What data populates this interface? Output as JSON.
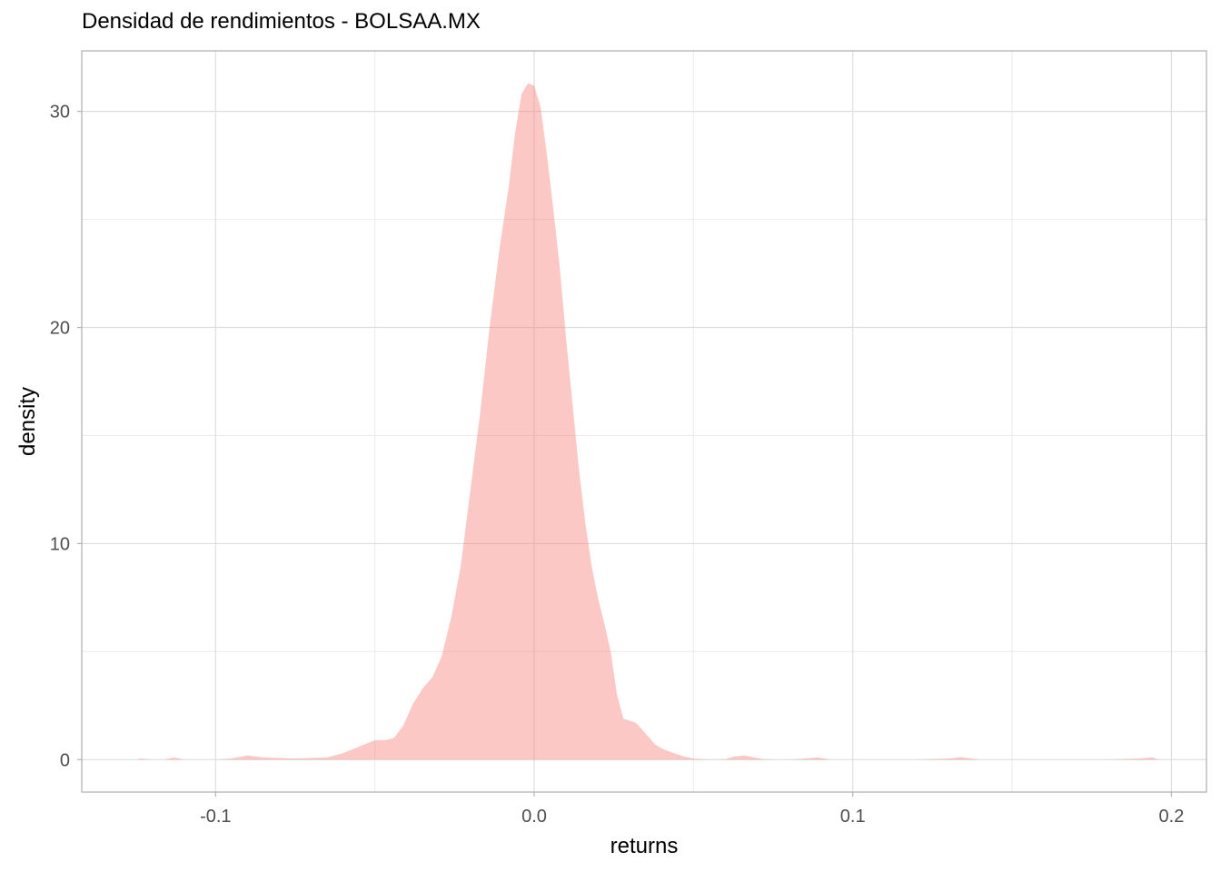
{
  "chart_data": {
    "type": "area",
    "title": "Densidad de rendimientos - BOLSAA.MX",
    "xlabel": "returns",
    "ylabel": "density",
    "xlim": [
      -0.142,
      0.211
    ],
    "ylim": [
      -1.5,
      32.8
    ],
    "x_ticks": [
      -0.1,
      0.0,
      0.1,
      0.2
    ],
    "x_tick_labels": [
      "-0.1",
      "0.0",
      "0.1",
      "0.2"
    ],
    "y_ticks": [
      0,
      10,
      20,
      30
    ],
    "y_tick_labels": [
      "0",
      "10",
      "20",
      "30"
    ],
    "x_minor": [
      -0.05,
      0.05,
      0.15
    ],
    "y_minor": [
      5,
      15,
      25
    ],
    "grid": true,
    "fill_color": "#f8766d",
    "fill_opacity": 0.4,
    "series": [
      {
        "name": "returns",
        "x": [
          -0.124,
          -0.12,
          -0.116,
          -0.113,
          -0.11,
          -0.1,
          -0.095,
          -0.09,
          -0.085,
          -0.075,
          -0.065,
          -0.06,
          -0.055,
          -0.05,
          -0.047,
          -0.044,
          -0.041,
          -0.038,
          -0.035,
          -0.032,
          -0.029,
          -0.026,
          -0.023,
          -0.02,
          -0.017,
          -0.014,
          -0.011,
          -0.008,
          -0.006,
          -0.004,
          -0.002,
          0.0,
          0.002,
          0.004,
          0.006,
          0.008,
          0.01,
          0.012,
          0.014,
          0.016,
          0.018,
          0.02,
          0.022,
          0.024,
          0.026,
          0.028,
          0.03,
          0.032,
          0.035,
          0.038,
          0.041,
          0.044,
          0.047,
          0.05,
          0.055,
          0.06,
          0.063,
          0.066,
          0.069,
          0.072,
          0.076,
          0.08,
          0.085,
          0.089,
          0.093,
          0.1,
          0.12,
          0.13,
          0.134,
          0.137,
          0.14,
          0.15,
          0.18,
          0.19,
          0.194,
          0.196,
          0.2
        ],
        "y": [
          0.05,
          0.0,
          0.0,
          0.1,
          0.0,
          0.0,
          0.05,
          0.2,
          0.1,
          0.05,
          0.1,
          0.3,
          0.6,
          0.9,
          0.9,
          1.0,
          1.6,
          2.6,
          3.3,
          3.8,
          4.8,
          6.6,
          9.0,
          12.5,
          16.0,
          20.0,
          23.5,
          26.5,
          29.0,
          30.8,
          31.3,
          31.2,
          30.2,
          28.0,
          25.5,
          22.8,
          19.5,
          16.5,
          13.5,
          11.0,
          9.0,
          7.5,
          6.3,
          5.0,
          3.0,
          1.9,
          1.8,
          1.7,
          1.2,
          0.7,
          0.45,
          0.3,
          0.15,
          0.05,
          0.0,
          0.02,
          0.15,
          0.2,
          0.1,
          0.02,
          0.0,
          0.0,
          0.05,
          0.1,
          0.0,
          0.0,
          0.0,
          0.05,
          0.12,
          0.05,
          0.0,
          0.0,
          0.0,
          0.05,
          0.1,
          0.0,
          0.0
        ]
      }
    ]
  }
}
